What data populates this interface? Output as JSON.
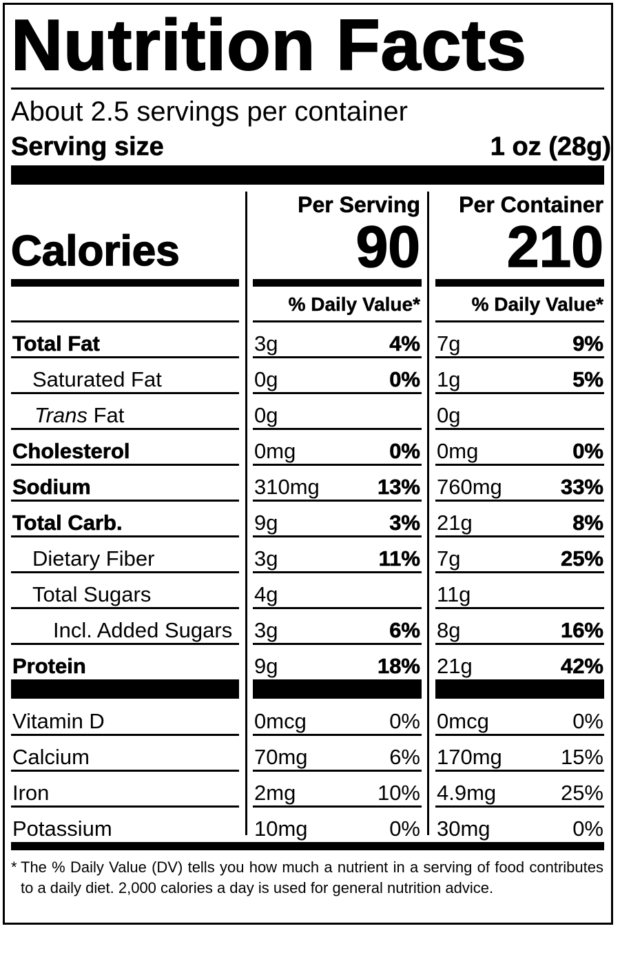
{
  "header": {
    "title": "Nutrition Facts",
    "servings_per_container": "About 2.5 servings per container",
    "serving_size_label": "Serving size",
    "serving_size_value": "1 oz (28g)"
  },
  "calories": {
    "label": "Calories",
    "per_serving_heading": "Per Serving",
    "per_container_heading": "Per Container",
    "per_serving_value": "90",
    "per_container_value": "210"
  },
  "daily_value_heading": "% Daily Value*",
  "nutrients": [
    {
      "label": "Total Fat",
      "serving_amount": "3g",
      "serving_dv": "4%",
      "container_amount": "7g",
      "container_dv": "9%"
    },
    {
      "label": "Saturated Fat",
      "serving_amount": "0g",
      "serving_dv": "0%",
      "container_amount": "1g",
      "container_dv": "5%"
    },
    {
      "label_italic": "Trans",
      "label": "Fat",
      "serving_amount": "0g",
      "serving_dv": "",
      "container_amount": "0g",
      "container_dv": ""
    },
    {
      "label": "Cholesterol",
      "serving_amount": "0mg",
      "serving_dv": "0%",
      "container_amount": "0mg",
      "container_dv": "0%"
    },
    {
      "label": "Sodium",
      "serving_amount": "310mg",
      "serving_dv": "13%",
      "container_amount": "760mg",
      "container_dv": "33%"
    },
    {
      "label": "Total Carb.",
      "serving_amount": "9g",
      "serving_dv": "3%",
      "container_amount": "21g",
      "container_dv": "8%"
    },
    {
      "label": "Dietary Fiber",
      "serving_amount": "3g",
      "serving_dv": "11%",
      "container_amount": "7g",
      "container_dv": "25%"
    },
    {
      "label": "Total Sugars",
      "serving_amount": "4g",
      "serving_dv": "",
      "container_amount": "11g",
      "container_dv": ""
    },
    {
      "label": "Incl. Added Sugars",
      "serving_amount": "3g",
      "serving_dv": "6%",
      "container_amount": "8g",
      "container_dv": "16%"
    },
    {
      "label": "Protein",
      "serving_amount": "9g",
      "serving_dv": "18%",
      "container_amount": "21g",
      "container_dv": "42%"
    }
  ],
  "vitamins": [
    {
      "label": "Vitamin D",
      "serving_amount": "0mcg",
      "serving_dv": "0%",
      "container_amount": "0mcg",
      "container_dv": "0%"
    },
    {
      "label": "Calcium",
      "serving_amount": "70mg",
      "serving_dv": "6%",
      "container_amount": "170mg",
      "container_dv": "15%"
    },
    {
      "label": "Iron",
      "serving_amount": "2mg",
      "serving_dv": "10%",
      "container_amount": "4.9mg",
      "container_dv": "25%"
    },
    {
      "label": "Potassium",
      "serving_amount": "10mg",
      "serving_dv": "0%",
      "container_amount": "30mg",
      "container_dv": "0%"
    }
  ],
  "footnote": {
    "mark": "*",
    "text": "The % Daily Value (DV) tells you how much a nutrient in a serving of food contributes to a daily diet. 2,000 calories a day is used for general nutrition advice."
  }
}
